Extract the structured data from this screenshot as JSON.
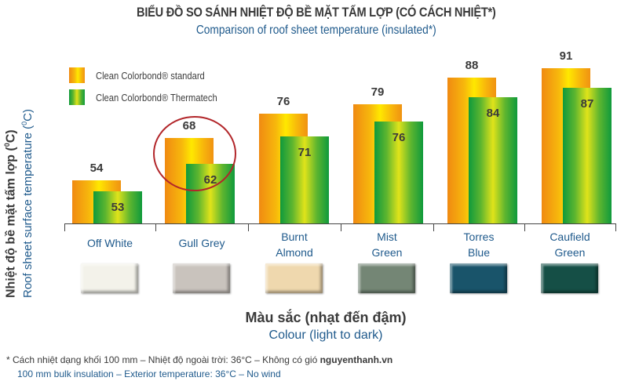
{
  "title": {
    "vietnamese": "BIỂU ĐỒ SO SÁNH NHIỆT ĐỘ BỀ MẶT TẤM LỢP (CÓ CÁCH NHIỆT*)",
    "english": "Comparison of roof sheet temperature (insulated*)"
  },
  "legend": {
    "standard": "Clean Colorbond® standard",
    "thermatech": "Clean Colorbond® Thermatech"
  },
  "yaxis": {
    "vietnamese": "Nhiệt độ bề mặt tấm lợp (",
    "english": "Roof sheet surface temperature (",
    "unit_sup": "0",
    "unit_tail": "C)"
  },
  "xaxis": {
    "vietnamese": "Màu sắc (nhạt đến đậm)",
    "english": "Colour (light to dark)"
  },
  "categories": [
    {
      "line1": "Off White",
      "line2": "",
      "standard": "54",
      "thermatech": "53",
      "swatch": "#f3f2ea"
    },
    {
      "line1": "Gull Grey",
      "line2": "",
      "standard": "68",
      "thermatech": "62",
      "swatch": "#c9c3bd"
    },
    {
      "line1": "Burnt",
      "line2": "Almond",
      "standard": "76",
      "thermatech": "71",
      "swatch": "#efd8ae"
    },
    {
      "line1": "Mist",
      "line2": "Green",
      "standard": "79",
      "thermatech": "76",
      "swatch": "#748675"
    },
    {
      "line1": "Torres",
      "line2": "Blue",
      "standard": "88",
      "thermatech": "84",
      "swatch": "#19546a"
    },
    {
      "line1": "Caufield",
      "line2": "Green",
      "standard": "91",
      "thermatech": "87",
      "swatch": "#154f46"
    }
  ],
  "footnote": {
    "vietnamese": "* Cách nhiệt dạng khối 100 mm – Nhiệt độ ngoài trời: 36°C – Không có gió",
    "watermark": "nguyenthanh.vn",
    "english": "100 mm bulk insulation – Exterior temperature: 36°C – No wind"
  },
  "colors": {
    "title_dark": "#3a3a3a",
    "title_blue": "#1f5a8c",
    "highlight_circle": "#b2262a",
    "standard_gradient": [
      "#f08a12",
      "#ffe800"
    ],
    "thermatech_gradient": [
      "#0f9a3c",
      "#e0e31a"
    ]
  },
  "chart_data": {
    "type": "bar",
    "title": "BIỂU ĐỒ SO SÁNH NHIỆT ĐỘ BỀ MẶT TẤM LỢP (CÓ CÁCH NHIỆT*) / Comparison of roof sheet temperature (insulated*)",
    "categories": [
      "Off White",
      "Gull Grey",
      "Burnt Almond",
      "Mist Green",
      "Torres Blue",
      "Caufield Green"
    ],
    "series": [
      {
        "name": "Clean Colorbond® standard",
        "values": [
          54,
          68,
          76,
          79,
          88,
          91
        ]
      },
      {
        "name": "Clean Colorbond® Thermatech",
        "values": [
          53,
          62,
          71,
          76,
          84,
          87
        ]
      }
    ],
    "xlabel": "Màu sắc (nhạt đến đậm) / Colour (light to dark)",
    "ylabel": "Nhiệt độ bề mặt tấm lợp (°C) / Roof sheet surface temperature (°C)",
    "grid": false,
    "legend_position": "top-left",
    "annotations": [
      "Red circle highlighting Gull Grey (68 / 62)"
    ],
    "footnote": "* 100 mm bulk insulation – Exterior temperature: 36°C – No wind"
  }
}
